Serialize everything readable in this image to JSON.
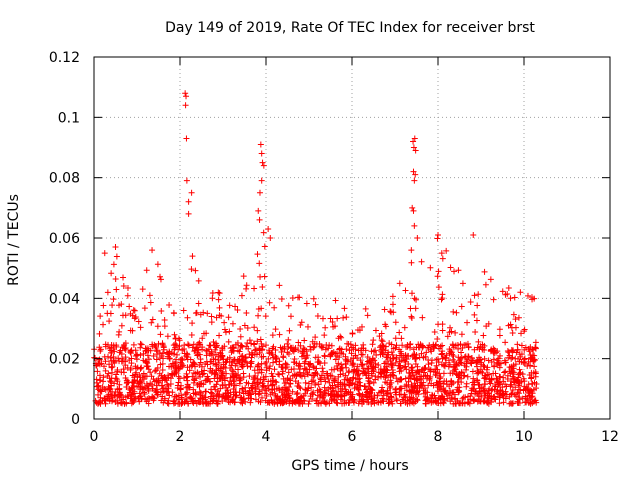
{
  "chart_data": {
    "type": "scatter",
    "title": "Day 149 of 2019, Rate Of TEC Index for receiver brst",
    "xlabel": "GPS time / hours",
    "ylabel": "ROTI / TECUs",
    "xlim": [
      0,
      12
    ],
    "ylim": [
      0,
      0.12
    ],
    "x_ticks": [
      0,
      2,
      4,
      6,
      8,
      10,
      12
    ],
    "x_tick_labels": [
      "0",
      "2",
      "4",
      "6",
      "8",
      "10",
      "12"
    ],
    "y_ticks": [
      0,
      0.02,
      0.04,
      0.06,
      0.08,
      0.1,
      0.12
    ],
    "y_tick_labels": [
      "0",
      "0.02",
      "0.04",
      "0.06",
      "0.08",
      "0.1",
      "0.12"
    ],
    "grid": true,
    "marker": "+",
    "color": "#ff0000",
    "x_extent": [
      0.0,
      10.3
    ],
    "typical_band": [
      0.005,
      0.025
    ],
    "envelope": [
      {
        "x": 0.0,
        "max": 0.04
      },
      {
        "x": 0.5,
        "max": 0.057
      },
      {
        "x": 1.0,
        "max": 0.035
      },
      {
        "x": 1.3,
        "max": 0.056
      },
      {
        "x": 1.6,
        "max": 0.05
      },
      {
        "x": 2.0,
        "max": 0.03
      },
      {
        "x": 2.25,
        "max": 0.055
      },
      {
        "x": 2.6,
        "max": 0.05
      },
      {
        "x": 3.0,
        "max": 0.04
      },
      {
        "x": 3.5,
        "max": 0.05
      },
      {
        "x": 3.8,
        "max": 0.065
      },
      {
        "x": 4.1,
        "max": 0.065
      },
      {
        "x": 4.5,
        "max": 0.04
      },
      {
        "x": 5.0,
        "max": 0.05
      },
      {
        "x": 6.0,
        "max": 0.035
      },
      {
        "x": 7.0,
        "max": 0.045
      },
      {
        "x": 7.4,
        "max": 0.055
      },
      {
        "x": 8.0,
        "max": 0.06
      },
      {
        "x": 8.5,
        "max": 0.052
      },
      {
        "x": 9.0,
        "max": 0.05
      },
      {
        "x": 10.3,
        "max": 0.04
      }
    ],
    "outliers": [
      {
        "x": 2.12,
        "y": 0.108
      },
      {
        "x": 2.14,
        "y": 0.107
      },
      {
        "x": 2.13,
        "y": 0.104
      },
      {
        "x": 2.15,
        "y": 0.093
      },
      {
        "x": 2.16,
        "y": 0.079
      },
      {
        "x": 2.2,
        "y": 0.072
      },
      {
        "x": 2.2,
        "y": 0.068
      },
      {
        "x": 2.27,
        "y": 0.075
      },
      {
        "x": 2.29,
        "y": 0.054
      },
      {
        "x": 3.88,
        "y": 0.091
      },
      {
        "x": 3.9,
        "y": 0.088
      },
      {
        "x": 3.92,
        "y": 0.085
      },
      {
        "x": 3.95,
        "y": 0.084
      },
      {
        "x": 3.9,
        "y": 0.079
      },
      {
        "x": 3.86,
        "y": 0.075
      },
      {
        "x": 3.82,
        "y": 0.069
      },
      {
        "x": 3.85,
        "y": 0.066
      },
      {
        "x": 4.05,
        "y": 0.063
      },
      {
        "x": 4.1,
        "y": 0.06
      },
      {
        "x": 7.42,
        "y": 0.092
      },
      {
        "x": 7.46,
        "y": 0.093
      },
      {
        "x": 7.44,
        "y": 0.09
      },
      {
        "x": 7.48,
        "y": 0.089
      },
      {
        "x": 7.43,
        "y": 0.082
      },
      {
        "x": 7.47,
        "y": 0.081
      },
      {
        "x": 7.45,
        "y": 0.079
      },
      {
        "x": 7.4,
        "y": 0.07
      },
      {
        "x": 7.43,
        "y": 0.069
      },
      {
        "x": 7.45,
        "y": 0.064
      },
      {
        "x": 7.52,
        "y": 0.06
      },
      {
        "x": 7.38,
        "y": 0.056
      },
      {
        "x": 8.0,
        "y": 0.061
      },
      {
        "x": 8.82,
        "y": 0.061
      },
      {
        "x": 0.5,
        "y": 0.057
      },
      {
        "x": 1.35,
        "y": 0.056
      },
      {
        "x": 0.25,
        "y": 0.055
      }
    ]
  }
}
